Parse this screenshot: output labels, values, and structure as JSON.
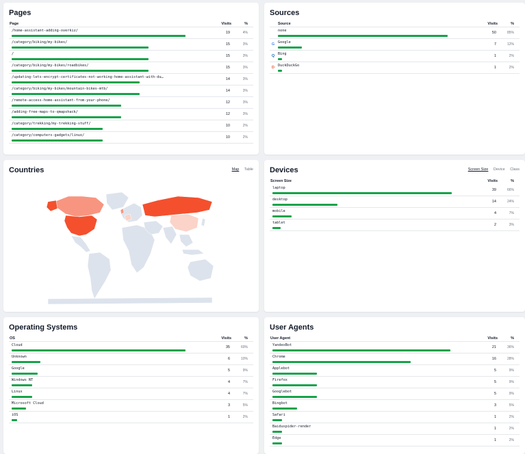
{
  "pages": {
    "title": "Pages",
    "col_label": "Page",
    "col_visits": "Visits",
    "col_pct": "%",
    "rows": [
      {
        "label": "/home-assistant-adding-overkiz/",
        "visits": "19",
        "pct": "4%",
        "fraction": 0.0396
      },
      {
        "label": "/category/biking/my-bikes/",
        "visits": "15",
        "pct": "3%",
        "fraction": 0.0312
      },
      {
        "label": "/",
        "visits": "15",
        "pct": "3%",
        "fraction": 0.0312
      },
      {
        "label": "/category/biking/my-bikes/roadbikes/",
        "visits": "15",
        "pct": "3%",
        "fraction": 0.0312
      },
      {
        "label": "/updating-lets-encrypt-certificates-not-working-home-assistant-with-du…",
        "visits": "14",
        "pct": "3%",
        "fraction": 0.0292
      },
      {
        "label": "/category/biking/my-bikes/mountain-bikes-mtb/",
        "visits": "14",
        "pct": "3%",
        "fraction": 0.0292
      },
      {
        "label": "/remote-access-home-assistant-from-your-phone/",
        "visits": "12",
        "pct": "3%",
        "fraction": 0.025
      },
      {
        "label": "/adding-free-maps-to-qmapshack/",
        "visits": "12",
        "pct": "3%",
        "fraction": 0.025
      },
      {
        "label": "/category/trekking/my-trekking-stuff/",
        "visits": "10",
        "pct": "2%",
        "fraction": 0.0208
      },
      {
        "label": "/category/computers-gadgets/linux/",
        "visits": "10",
        "pct": "2%",
        "fraction": 0.0208
      }
    ]
  },
  "sources": {
    "title": "Sources",
    "col_label": "Source",
    "col_visits": "Visits",
    "col_pct": "%",
    "rows": [
      {
        "label": "none",
        "icon": "",
        "visits": "50",
        "pct": "85%",
        "fraction": 0.85
      },
      {
        "label": "Google",
        "icon": "google-icon",
        "visits": "7",
        "pct": "12%",
        "fraction": 0.12
      },
      {
        "label": "Bing",
        "icon": "bing-icon",
        "visits": "1",
        "pct": "2%",
        "fraction": 0.02
      },
      {
        "label": "DuckDuckGo",
        "icon": "duckduckgo-icon",
        "visits": "1",
        "pct": "2%",
        "fraction": 0.02
      }
    ]
  },
  "countries": {
    "title": "Countries",
    "tabs": [
      "Map",
      "Table"
    ],
    "active_tab": "Map"
  },
  "devices": {
    "title": "Devices",
    "tabs": [
      "Screen Size",
      "Device",
      "Class"
    ],
    "active_tab": "Screen Size",
    "col_label": "Screen Size",
    "col_visits": "Visits",
    "col_pct": "%",
    "rows": [
      {
        "label": "laptop",
        "visits": "39",
        "pct": "66%",
        "fraction": 0.66
      },
      {
        "label": "desktop",
        "visits": "14",
        "pct": "24%",
        "fraction": 0.24
      },
      {
        "label": "mobile",
        "visits": "4",
        "pct": "7%",
        "fraction": 0.07
      },
      {
        "label": "tablet",
        "visits": "2",
        "pct": "3%",
        "fraction": 0.03
      }
    ]
  },
  "os": {
    "title": "Operating Systems",
    "col_label": "OS",
    "col_visits": "Visits",
    "col_pct": "%",
    "rows": [
      {
        "label": "Cloud",
        "visits": "35",
        "pct": "60%",
        "fraction": 0.6
      },
      {
        "label": "Unknown",
        "visits": "6",
        "pct": "10%",
        "fraction": 0.1
      },
      {
        "label": "Google",
        "visits": "5",
        "pct": "9%",
        "fraction": 0.09
      },
      {
        "label": "Windows NT",
        "visits": "4",
        "pct": "7%",
        "fraction": 0.07
      },
      {
        "label": "Linux",
        "visits": "4",
        "pct": "7%",
        "fraction": 0.07
      },
      {
        "label": "Microsoft Cloud",
        "visits": "3",
        "pct": "5%",
        "fraction": 0.05
      },
      {
        "label": "iOS",
        "visits": "1",
        "pct": "2%",
        "fraction": 0.02
      }
    ]
  },
  "user_agents": {
    "title": "User Agents",
    "col_label": "User Agent",
    "col_visits": "Visits",
    "col_pct": "%",
    "rows": [
      {
        "label": "YandexBot",
        "visits": "21",
        "pct": "36%",
        "fraction": 0.36
      },
      {
        "label": "Chrome",
        "visits": "16",
        "pct": "28%",
        "fraction": 0.28
      },
      {
        "label": "Applebot",
        "visits": "5",
        "pct": "9%",
        "fraction": 0.09
      },
      {
        "label": "Firefox",
        "visits": "5",
        "pct": "9%",
        "fraction": 0.09
      },
      {
        "label": "Googlebot",
        "visits": "5",
        "pct": "9%",
        "fraction": 0.09
      },
      {
        "label": "Bingbot",
        "visits": "3",
        "pct": "5%",
        "fraction": 0.05
      },
      {
        "label": "Safari",
        "visits": "1",
        "pct": "2%",
        "fraction": 0.02
      },
      {
        "label": "Baiduspider-render",
        "visits": "1",
        "pct": "2%",
        "fraction": 0.02
      },
      {
        "label": "Edge",
        "visits": "1",
        "pct": "2%",
        "fraction": 0.02
      }
    ]
  },
  "colors": {
    "bar": "#16a34a",
    "map_land": "#dde3ec",
    "map_high": "#f4502e",
    "map_mid": "#f89580",
    "map_low": "#fbd3c8"
  }
}
